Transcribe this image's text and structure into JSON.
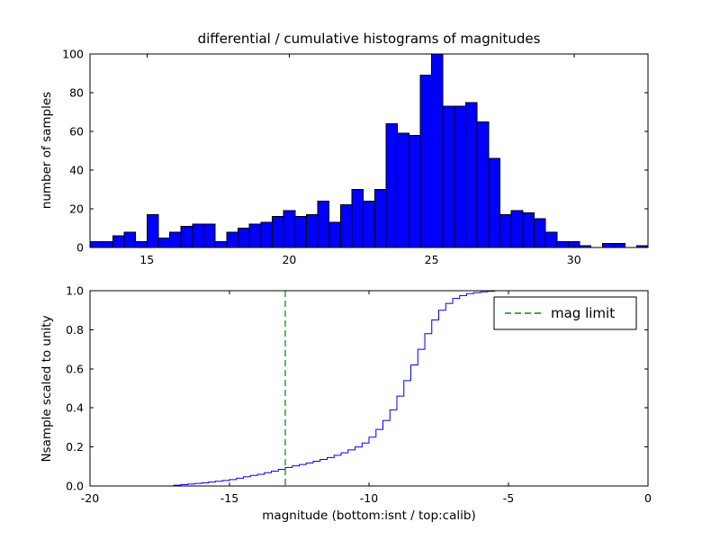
{
  "figure": {
    "title": "differential / cumulative histograms of magnitudes",
    "background": "#ffffff"
  },
  "top": {
    "ylabel": "number of samples",
    "xlim": [
      13,
      32.6
    ],
    "ylim": [
      0,
      100
    ],
    "xticks": {
      "values": [
        15,
        20,
        25,
        30
      ],
      "labels": [
        "15",
        "20",
        "25",
        "30"
      ]
    },
    "yticks": {
      "values": [
        0,
        20,
        40,
        60,
        80,
        100
      ],
      "labels": [
        "0",
        "20",
        "40",
        "60",
        "80",
        "100"
      ]
    },
    "bar_color": "#0000ff",
    "edge_color": "#000000"
  },
  "bottom": {
    "ylabel": "Nsample scaled to unity",
    "xlabel": "magnitude (bottom:isnt / top:calib)",
    "xlim": [
      -20,
      0
    ],
    "ylim": [
      0,
      1
    ],
    "xticks": {
      "values": [
        -20,
        -15,
        -10,
        -5,
        0
      ],
      "labels": [
        "-20",
        "-15",
        "-10",
        "-5",
        "0"
      ]
    },
    "yticks": {
      "values": [
        0,
        0.2,
        0.4,
        0.6,
        0.8,
        1
      ],
      "labels": [
        "0.0",
        "0.2",
        "0.4",
        "0.6",
        "0.8",
        "1.0"
      ]
    },
    "line_color": "#0000ff",
    "mag_limit_x": -13,
    "mag_limit_color": "#2ca02c",
    "legend_label": "mag limit"
  },
  "chart_data": [
    {
      "type": "bar",
      "name": "differential histogram (top panel)",
      "title": "differential / cumulative histograms of magnitudes",
      "ylabel": "number of samples",
      "bin_start": 13.0,
      "bin_width": 0.4,
      "values": [
        3,
        3,
        6,
        8,
        3,
        17,
        5,
        8,
        11,
        12,
        12,
        3,
        8,
        10,
        12,
        13,
        16,
        19,
        16,
        17,
        24,
        13,
        22,
        30,
        24,
        30,
        64,
        59,
        58,
        89,
        100,
        73,
        73,
        75,
        65,
        46,
        17,
        19,
        18,
        15,
        8,
        3,
        3,
        1,
        0,
        2,
        2,
        0,
        1
      ],
      "xlim": [
        13,
        32.6
      ],
      "ylim": [
        0,
        100
      ],
      "grid": false,
      "bar_color": "#0000ff"
    },
    {
      "type": "line",
      "name": "cumulative histogram scaled to unity (bottom panel)",
      "step": true,
      "xlabel": "magnitude (bottom:isnt / top:calib)",
      "ylabel": "Nsample scaled to unity",
      "x": [
        -20,
        -17,
        -16.75,
        -16.5,
        -16.25,
        -16,
        -15.75,
        -15.5,
        -15.25,
        -15,
        -14.75,
        -14.5,
        -14.25,
        -14,
        -13.75,
        -13.5,
        -13.25,
        -13,
        -12.75,
        -12.5,
        -12.25,
        -12,
        -11.75,
        -11.5,
        -11.25,
        -11,
        -10.75,
        -10.5,
        -10.25,
        -10,
        -9.75,
        -9.5,
        -9.25,
        -9,
        -8.75,
        -8.5,
        -8.25,
        -8,
        -7.75,
        -7.5,
        -7.25,
        -7,
        -6.75,
        -6.5,
        -6.25,
        -6,
        -5.75,
        -5.5,
        0
      ],
      "y": [
        0,
        0.004,
        0.007,
        0.01,
        0.013,
        0.016,
        0.02,
        0.024,
        0.028,
        0.033,
        0.04,
        0.047,
        0.054,
        0.06,
        0.068,
        0.076,
        0.085,
        0.095,
        0.103,
        0.11,
        0.118,
        0.127,
        0.136,
        0.146,
        0.157,
        0.17,
        0.185,
        0.2,
        0.22,
        0.25,
        0.29,
        0.335,
        0.39,
        0.46,
        0.54,
        0.62,
        0.7,
        0.78,
        0.85,
        0.9,
        0.935,
        0.96,
        0.975,
        0.985,
        0.99,
        0.994,
        0.997,
        1.0,
        1.0
      ],
      "xlim": [
        -20,
        0
      ],
      "ylim": [
        0,
        1
      ],
      "grid": false,
      "line_color": "#0000ff",
      "annotations": [
        {
          "type": "vline",
          "x": -13,
          "style": "dashed",
          "color": "#2ca02c",
          "label": "mag limit"
        }
      ],
      "legend": {
        "position": "upper right",
        "entries": [
          "mag limit"
        ]
      }
    }
  ]
}
